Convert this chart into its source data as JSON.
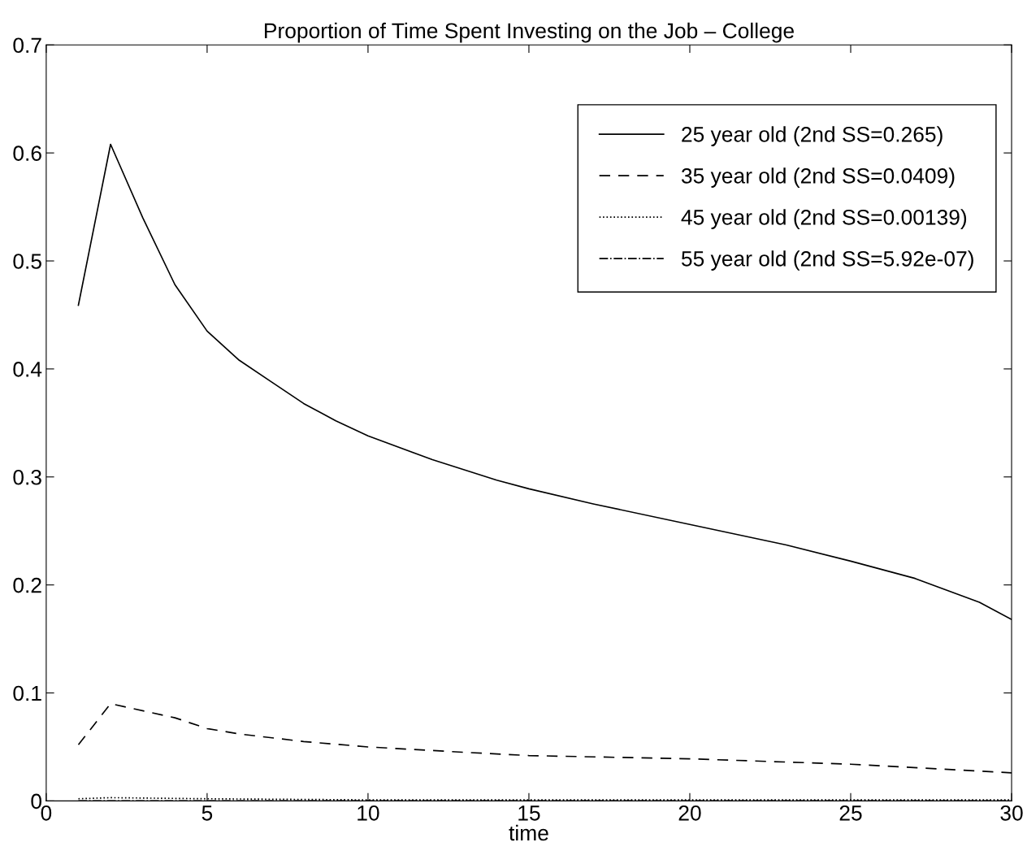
{
  "chart_data": {
    "type": "line",
    "title": "Proportion of Time Spent Investing on the Job – College",
    "xlabel": "time",
    "xlim": [
      0,
      30
    ],
    "xticks": [
      0,
      5,
      10,
      15,
      20,
      25,
      30
    ],
    "ylim": [
      0,
      0.7
    ],
    "yticks": [
      0,
      0.1,
      0.2,
      0.3,
      0.4,
      0.5,
      0.6,
      0.7
    ],
    "grid": false,
    "legend": "top right",
    "marker": "none",
    "series": [
      {
        "name": "25 year old (2nd SS=0.265)",
        "color": "#000000",
        "line_style": "solid",
        "x": [
          1,
          2,
          3,
          4,
          5,
          6,
          7,
          8,
          9,
          10,
          12,
          14,
          15,
          17,
          20,
          23,
          25,
          27,
          29,
          30
        ],
        "values": [
          0.459,
          0.608,
          0.54,
          0.478,
          0.435,
          0.408,
          0.388,
          0.368,
          0.352,
          0.338,
          0.316,
          0.297,
          0.289,
          0.275,
          0.256,
          0.237,
          0.222,
          0.206,
          0.184,
          0.168
        ]
      },
      {
        "name": "35 year old (2nd SS=0.0409)",
        "color": "#000000",
        "line_style": "dashed",
        "x": [
          1,
          2,
          4,
          5,
          6,
          8,
          10,
          13,
          15,
          20,
          25,
          30
        ],
        "values": [
          0.052,
          0.09,
          0.077,
          0.067,
          0.062,
          0.055,
          0.05,
          0.045,
          0.042,
          0.039,
          0.034,
          0.026
        ]
      },
      {
        "name": "45 year old (2nd SS=0.00139)",
        "color": "#000000",
        "line_style": "dotted",
        "x": [
          1,
          2,
          5,
          10,
          20,
          30
        ],
        "values": [
          0.002,
          0.003,
          0.002,
          0.001,
          0.001,
          0.001
        ]
      },
      {
        "name": "55 year old (2nd SS=5.92e-07)",
        "color": "#000000",
        "line_style": "dashdot",
        "x": [
          1,
          2,
          10,
          20,
          30
        ],
        "values": [
          0,
          0,
          0,
          0,
          0
        ]
      }
    ]
  }
}
